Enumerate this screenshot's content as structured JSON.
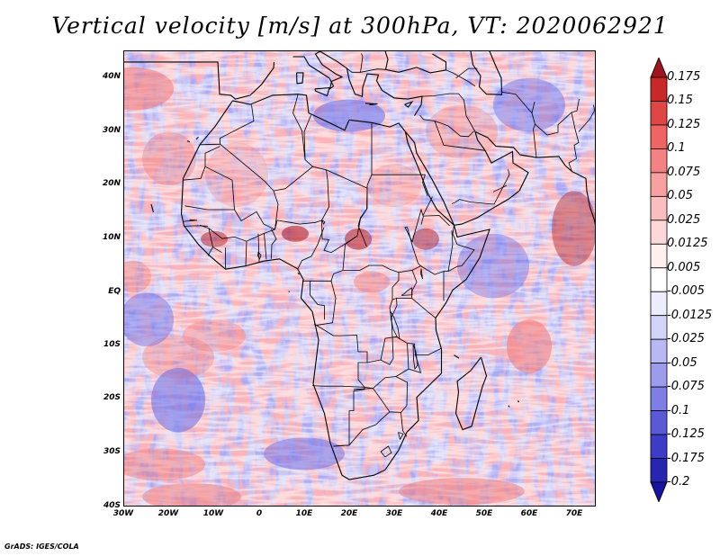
{
  "title": "Vertical velocity [m/s] at 300hPa, VT: 2020062921",
  "credit": "GrADS: IGES/COLA",
  "lat_labels": [
    "40N",
    "30N",
    "20N",
    "10N",
    "EQ",
    "10S",
    "20S",
    "30S",
    "40S"
  ],
  "lon_labels": [
    "30W",
    "20W",
    "10W",
    "0",
    "10E",
    "20E",
    "30E",
    "40E",
    "50E",
    "60E",
    "70E"
  ],
  "colorbar": {
    "levels": [
      "0.175",
      "0.15",
      "0.125",
      "0.1",
      "0.075",
      "0.05",
      "0.025",
      "0.0125",
      "0.005",
      "-0.005",
      "-0.0125",
      "-0.025",
      "-0.05",
      "-0.075",
      "-0.1",
      "-0.125",
      "-0.175",
      "-0.2"
    ],
    "colors": [
      "#a0141e",
      "#c82828",
      "#e04646",
      "#f06464",
      "#f58282",
      "#f8a0a0",
      "#fbbebe",
      "#fcd8d8",
      "#fff0f0",
      "#ffffff",
      "#ececfc",
      "#d4d4f8",
      "#b8b8f4",
      "#9c9cee",
      "#7e7ee6",
      "#5a5ad8",
      "#3c3cc8",
      "#2626b0",
      "#1414a0"
    ]
  },
  "map": {
    "lon_range": [
      -30,
      75
    ],
    "lat_range": [
      -40,
      45
    ],
    "field": "Vertical velocity",
    "level": "300hPa",
    "valid_time": "2020062921",
    "colors": {
      "land_base": "#c8c6f0",
      "ocean_base": "#d2d0f4",
      "positive": "#f07878",
      "negative": "#6a6ae6",
      "strong_positive": "#b01e28"
    }
  }
}
